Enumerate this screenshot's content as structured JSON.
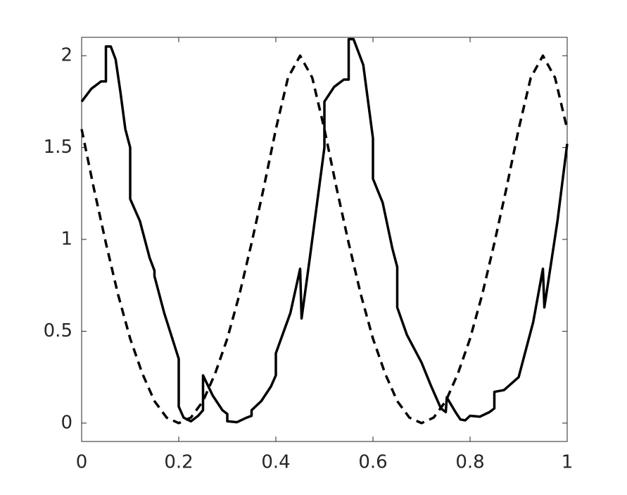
{
  "chart_data": {
    "type": "line",
    "xlim": [
      0,
      1
    ],
    "ylim": [
      -0.1,
      2.1
    ],
    "xticks": [
      0,
      0.2,
      0.4,
      0.6,
      0.8,
      1
    ],
    "yticks": [
      0,
      0.5,
      1,
      1.5,
      2
    ],
    "box": true,
    "series": [
      {
        "color": "#000000",
        "linestyle": "solid",
        "x": [
          0,
          0.02,
          0.04,
          0.05,
          0.05,
          0.06,
          0.07,
          0.08,
          0.09,
          0.1,
          0.1,
          0.12,
          0.14,
          0.15,
          0.15,
          0.17,
          0.2,
          0.2,
          0.21,
          0.225,
          0.24,
          0.25,
          0.25,
          0.27,
          0.29,
          0.3,
          0.3,
          0.32,
          0.34,
          0.35,
          0.35,
          0.37,
          0.39,
          0.4,
          0.4,
          0.43,
          0.45,
          0.453,
          0.47,
          0.49,
          0.5,
          0.5,
          0.52,
          0.54,
          0.55,
          0.55,
          0.56,
          0.58,
          0.6,
          0.6,
          0.62,
          0.64,
          0.65,
          0.65,
          0.67,
          0.7,
          0.72,
          0.74,
          0.75,
          0.752,
          0.77,
          0.78,
          0.79,
          0.8,
          0.82,
          0.84,
          0.85,
          0.85,
          0.87,
          0.9,
          0.93,
          0.95,
          0.953,
          0.98,
          1
        ],
        "values": [
          1.75,
          1.82,
          1.86,
          1.86,
          2.05,
          2.05,
          1.98,
          1.8,
          1.6,
          1.5,
          1.22,
          1.1,
          0.9,
          0.83,
          0.8,
          0.6,
          0.35,
          0.09,
          0.03,
          0.01,
          0.04,
          0.07,
          0.26,
          0.15,
          0.07,
          0.05,
          0.01,
          0.005,
          0.03,
          0.04,
          0.07,
          0.12,
          0.2,
          0.26,
          0.38,
          0.6,
          0.84,
          0.57,
          0.9,
          1.3,
          1.5,
          1.75,
          1.83,
          1.87,
          1.87,
          2.09,
          2.09,
          1.95,
          1.55,
          1.33,
          1.2,
          0.95,
          0.85,
          0.63,
          0.48,
          0.33,
          0.2,
          0.08,
          0.06,
          0.14,
          0.06,
          0.02,
          0.015,
          0.04,
          0.035,
          0.06,
          0.08,
          0.17,
          0.18,
          0.25,
          0.55,
          0.84,
          0.63,
          1.1,
          1.52
        ]
      },
      {
        "color": "#000000",
        "linestyle": "dashed",
        "x": [
          0,
          0.025,
          0.05,
          0.075,
          0.1,
          0.125,
          0.15,
          0.175,
          0.2,
          0.225,
          0.25,
          0.275,
          0.3,
          0.325,
          0.35,
          0.375,
          0.4,
          0.425,
          0.45,
          0.475,
          0.5,
          0.525,
          0.55,
          0.575,
          0.6,
          0.625,
          0.65,
          0.675,
          0.7,
          0.725,
          0.75,
          0.775,
          0.8,
          0.825,
          0.85,
          0.875,
          0.9,
          0.925,
          0.95,
          0.975,
          1
        ],
        "values": [
          1.6,
          1.28,
          0.98,
          0.7,
          0.46,
          0.27,
          0.12,
          0.03,
          0,
          0.03,
          0.12,
          0.27,
          0.46,
          0.7,
          0.98,
          1.28,
          1.6,
          1.88,
          2.0,
          1.88,
          1.6,
          1.28,
          0.98,
          0.7,
          0.46,
          0.27,
          0.12,
          0.03,
          0,
          0.03,
          0.12,
          0.27,
          0.46,
          0.7,
          0.98,
          1.28,
          1.6,
          1.88,
          2.0,
          1.88,
          1.6
        ]
      }
    ]
  }
}
